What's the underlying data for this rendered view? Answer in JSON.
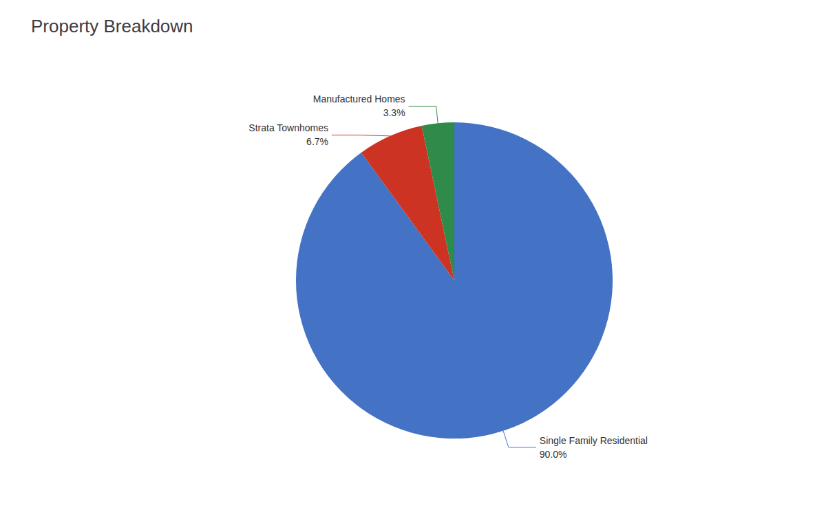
{
  "chart_data": {
    "type": "pie",
    "title": "Property Breakdown",
    "categories": [
      "Single Family Residential",
      "Strata Townhomes",
      "Manufactured Homes"
    ],
    "values": [
      90.0,
      6.7,
      3.3
    ],
    "value_labels": [
      "90.0%",
      "6.7%",
      "3.3%"
    ],
    "colors": [
      "#4472C4",
      "#CC3322",
      "#2E8B4A"
    ],
    "data_labels": true
  }
}
